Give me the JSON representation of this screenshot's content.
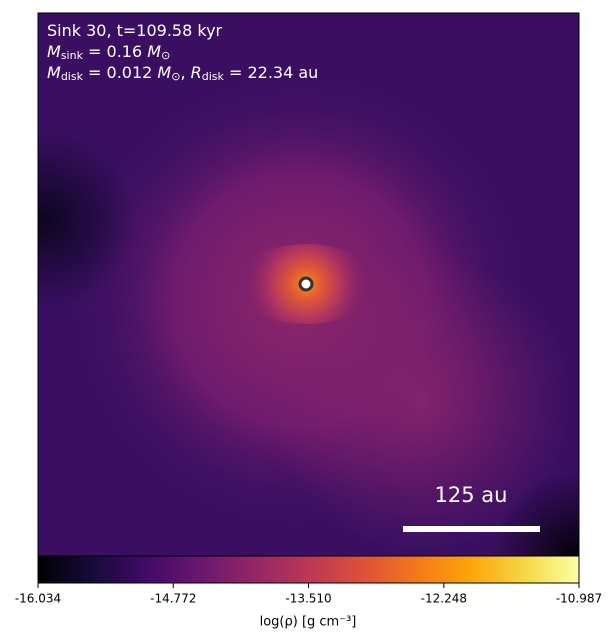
{
  "chart_data": {
    "type": "image",
    "annotations": [
      [
        {
          "t": "Sink 30, t=109.58 kyr"
        }
      ],
      [
        {
          "t": "M",
          "it": true
        },
        {
          "t": "sink",
          "sub": true
        },
        {
          "t": " = 0.16 "
        },
        {
          "t": "M",
          "it": true
        },
        {
          "t": "⊙",
          "sub": true
        }
      ],
      [
        {
          "t": "M",
          "it": true
        },
        {
          "t": "disk",
          "sub": true
        },
        {
          "t": " = 0.012 "
        },
        {
          "t": "M",
          "it": true
        },
        {
          "t": "⊙",
          "sub": true
        },
        {
          "t": ", "
        },
        {
          "t": "R",
          "it": true
        },
        {
          "t": "disk",
          "sub": true
        },
        {
          "t": " = 22.34 au"
        }
      ]
    ],
    "scale_bar_label": "125 au",
    "colorbar": {
      "label": "log(ρ) [g cm⁻³]",
      "cmap": "inferno",
      "lim": [
        -16.034,
        -10.987
      ],
      "ticks": [
        -16.034,
        -14.772,
        {
          "value": -13.51,
          "label": "-13.510"
        },
        -12.248,
        -10.987
      ]
    }
  }
}
